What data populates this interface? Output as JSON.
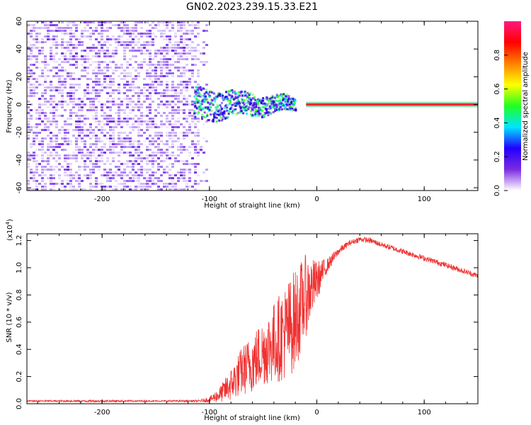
{
  "title": "GN02.2023.239.15.33.E21",
  "chart_data": [
    {
      "type": "heatmap",
      "xlabel": "Height of straight line (km)",
      "ylabel": "Frequency (Hz)",
      "xlim": [
        -270,
        150
      ],
      "ylim": [
        -62,
        60
      ],
      "xticks": [
        -200,
        -100,
        0,
        100
      ],
      "xtick_labels": [
        "-200",
        "-100",
        "0",
        "100"
      ],
      "yticks": [
        60,
        40,
        20,
        0,
        -20,
        -40,
        -60
      ],
      "ytick_labels": [
        "60",
        "40",
        "20",
        "0",
        "-20",
        "-40",
        "-60"
      ],
      "colorbar": {
        "label": "Normalized spectral amplitude",
        "range": [
          0,
          1
        ],
        "ticks": [
          0.0,
          0.2,
          0.4,
          0.6,
          0.8
        ],
        "tick_labels": [
          "0.0",
          "0.2",
          "0.4",
          "0.6",
          "0.8"
        ],
        "colormap": [
          "#ffffff",
          "#7a2be0",
          "#2200ff",
          "#00e5ff",
          "#20ff20",
          "#ffff00",
          "#ff8000",
          "#ff0000",
          "#ff1a80"
        ]
      },
      "noise_region_x": [
        -270,
        -110
      ],
      "signal_line_frequency": 0,
      "signal_line_x": [
        -10,
        150
      ],
      "scattered_band_x": [
        -115,
        -20
      ],
      "scattered_band_half_width_hz": 12
    },
    {
      "type": "line",
      "xlabel": "Height of straight line (km)",
      "ylabel": "SNR (10 * v/v)",
      "y_multiplier_label": "(x10",
      "y_multiplier_exp": "4",
      "y_multiplier_close": ")",
      "xlim": [
        -270,
        150
      ],
      "ylim": [
        0,
        1.25
      ],
      "xticks": [
        -200,
        -100,
        0,
        100
      ],
      "xtick_labels": [
        "-200",
        "-100",
        "0",
        "100"
      ],
      "yticks": [
        0.0,
        0.2,
        0.4,
        0.6,
        0.8,
        1.0,
        1.2
      ],
      "ytick_labels": [
        "0.0",
        "0.2",
        "0.4",
        "0.6",
        "0.8",
        "1.0",
        "1.2"
      ],
      "color": "#f03030",
      "x": [
        -270,
        -200,
        -150,
        -110,
        -100,
        -90,
        -80,
        -70,
        -60,
        -50,
        -40,
        -30,
        -20,
        -10,
        0,
        10,
        20,
        30,
        40,
        50,
        60,
        80,
        100,
        120,
        150
      ],
      "y": [
        0.02,
        0.02,
        0.02,
        0.02,
        0.03,
        0.07,
        0.14,
        0.24,
        0.3,
        0.38,
        0.45,
        0.52,
        0.62,
        0.8,
        0.9,
        1.02,
        1.12,
        1.18,
        1.21,
        1.2,
        1.17,
        1.12,
        1.07,
        1.02,
        0.94
      ],
      "noise_amplitude": [
        0.005,
        0.008,
        0.005,
        0.008,
        0.02,
        0.06,
        0.12,
        0.18,
        0.22,
        0.25,
        0.3,
        0.35,
        0.38,
        0.3,
        0.15,
        0.05,
        0.03,
        0.02,
        0.02,
        0.02,
        0.02,
        0.02,
        0.02,
        0.02,
        0.02
      ]
    }
  ]
}
